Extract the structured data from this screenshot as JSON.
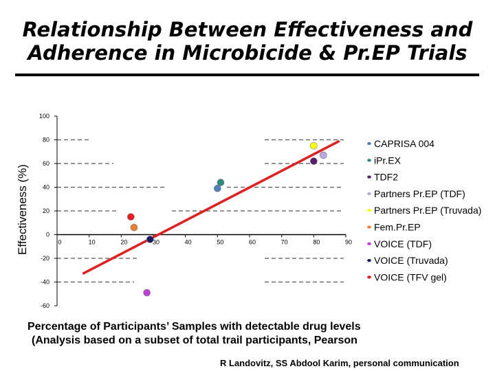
{
  "title": {
    "line1": "Relationship Between Effectiveness and",
    "line2": "Adherence in Microbicide & Pr.EP Trials"
  },
  "footer": {
    "line1": "Percentage of Participants’ Samples with detectable drug levels",
    "line2": "(Analysis based on a subset of total trail participants, Pearson"
  },
  "credit": "R Landovitz, SS Abdool Karim, personal communication",
  "chart_data": {
    "type": "scatter",
    "ylabel": "Effectiveness (%)",
    "xlabel": "",
    "xlim": [
      0,
      90
    ],
    "ylim": [
      -60,
      100
    ],
    "x_ticks": [
      "0",
      "10",
      "20",
      "30",
      "40",
      "50",
      "60",
      "70",
      "80",
      "90"
    ],
    "y_ticks": [
      "100",
      "80",
      "60",
      "40",
      "20",
      "0",
      "-20",
      "-40",
      "-60"
    ],
    "grid": "dashed horizontal, partial",
    "legend_position": "right",
    "series": [
      {
        "name": "CAPRISA 004",
        "color": "#4f81bd",
        "x": 50,
        "y": 39
      },
      {
        "name": "iPr.EX",
        "color": "#2e8b80",
        "x": 51,
        "y": 44
      },
      {
        "name": "TDF2",
        "color": "#5a1e6e",
        "x": 80,
        "y": 62
      },
      {
        "name": "Partners Pr.EP (TDF)",
        "color": "#b8a8dc",
        "x": 83,
        "y": 67
      },
      {
        "name": "Partners Pr.EP (Truvada)",
        "color": "#ffff00",
        "x": 80,
        "y": 75
      },
      {
        "name": "Fem.Pr.EP",
        "color": "#f07f2b",
        "x": 24,
        "y": 6
      },
      {
        "name": "VOICE (TDF)",
        "color": "#bf3fd8",
        "x": 28,
        "y": -49
      },
      {
        "name": "VOICE (Truvada)",
        "color": "#1a1a66",
        "x": 29,
        "y": -4
      },
      {
        "name": "VOICE (TFV gel)",
        "color": "#ee1c1c",
        "x": 23,
        "y": 15
      }
    ],
    "trendline": {
      "color": "#e41e1e",
      "from": [
        8,
        -33
      ],
      "to": [
        88,
        79
      ]
    }
  }
}
